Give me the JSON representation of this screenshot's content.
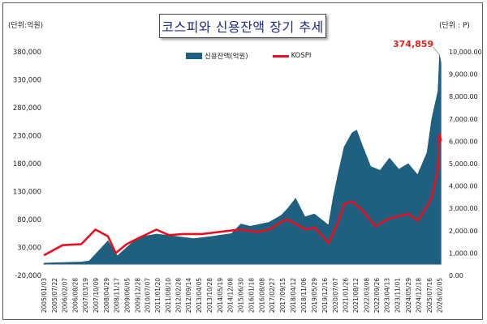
{
  "title": "코스피와 신용잔액 장기 추세",
  "left_unit": "(단위:억원)",
  "right_unit": "(단위 : P)",
  "chart_data": {
    "type": "area+line",
    "title": "코스피와 신용잔액 장기 추세",
    "legend_position": "top-center",
    "grid": false,
    "series": [
      {
        "name": "신용잔액(억원)",
        "type": "area",
        "axis": "left",
        "color": "#1f5f7f",
        "x": [
          "2005/01",
          "2006/01",
          "2007/01",
          "2007/06",
          "2008/06",
          "2008/12",
          "2009/06",
          "2010/01",
          "2011/01",
          "2012/01",
          "2013/01",
          "2014/01",
          "2015/01",
          "2015/07",
          "2016/01",
          "2017/01",
          "2017/09",
          "2018/01",
          "2018/06",
          "2018/12",
          "2019/06",
          "2020/03",
          "2020/06",
          "2020/09",
          "2021/01",
          "2021/06",
          "2021/09",
          "2022/01",
          "2022/06",
          "2022/12",
          "2023/06",
          "2023/12",
          "2024/06",
          "2024/12",
          "2025/06",
          "2025/09",
          "2026/01",
          "2026/02",
          "2026/03"
        ],
        "values": [
          2000,
          3000,
          4000,
          6000,
          42000,
          15000,
          30000,
          48000,
          54000,
          50000,
          46000,
          50000,
          55000,
          72000,
          68000,
          75000,
          88000,
          100000,
          118000,
          85000,
          90000,
          70000,
          120000,
          160000,
          210000,
          235000,
          240000,
          210000,
          175000,
          168000,
          190000,
          170000,
          180000,
          160000,
          200000,
          260000,
          310000,
          374859,
          360000
        ]
      },
      {
        "name": "KOSPI",
        "type": "line",
        "axis": "right",
        "color": "#e8101f",
        "x": [
          "2005/01",
          "2006/01",
          "2007/01",
          "2007/10",
          "2008/06",
          "2008/11",
          "2009/06",
          "2010/01",
          "2011/01",
          "2011/09",
          "2012/06",
          "2013/06",
          "2014/06",
          "2015/06",
          "2016/06",
          "2017/01",
          "2017/09",
          "2018/01",
          "2018/12",
          "2019/06",
          "2020/03",
          "2020/09",
          "2021/01",
          "2021/06",
          "2021/12",
          "2022/09",
          "2023/06",
          "2024/06",
          "2024/12",
          "2025/06",
          "2025/09",
          "2026/01",
          "2026/02",
          "2026/03"
        ],
        "values": [
          900,
          1350,
          1400,
          2050,
          1750,
          1000,
          1400,
          1650,
          2050,
          1800,
          1850,
          1850,
          1950,
          2050,
          1950,
          2050,
          2400,
          2500,
          2050,
          2150,
          1450,
          2350,
          3200,
          3300,
          2950,
          2200,
          2550,
          2750,
          2450,
          3100,
          3500,
          4800,
          6300,
          6000
        ]
      }
    ],
    "left_axis": {
      "min": -20000,
      "max": 380000,
      "ticks": [
        "-20,000",
        "30,000",
        "80,000",
        "130,000",
        "180,000",
        "230,000",
        "280,000",
        "330,000",
        "380,000"
      ]
    },
    "right_axis": {
      "min": 0,
      "max": 10000,
      "ticks": [
        "0.00",
        "1,000.00",
        "2,000.00",
        "3,000.00",
        "4,000.00",
        "5,000.00",
        "6,000.00",
        "7,000.00",
        "8,000.00",
        "9,000.00",
        "10,000.00"
      ]
    },
    "x_ticks": [
      "2005/01/03",
      "2005/07/22",
      "2006/02/07",
      "2006/08/28",
      "2007/03/19",
      "2007/10/09",
      "2008/04/29",
      "2008/11/17",
      "2009/06/05",
      "2009/12/28",
      "2010/07/07",
      "2011/01/20",
      "2011/08/10",
      "2012/02/28",
      "2012/09/14",
      "2013/04/05",
      "2013/10/28",
      "2014/05/19",
      "2014/12/08",
      "2015/06/30",
      "2016/01/18",
      "2016/08/08",
      "2017/02/27",
      "2017/09/15",
      "2018/04/12",
      "2018/11/06",
      "2019/05/29",
      "2019/12/16",
      "2020/07/07",
      "2021/01/26",
      "2021/08/12",
      "2022/03/08",
      "2022/09/26",
      "2023/04/13",
      "2023/11/01",
      "2024/05/29",
      "2024/12/18",
      "2025/07/16",
      "2026/02/05"
    ],
    "annotations": [
      {
        "text": "374,859",
        "x": "2026/02",
        "series": "신용잔액(억원)",
        "color": "#e52222"
      }
    ]
  }
}
